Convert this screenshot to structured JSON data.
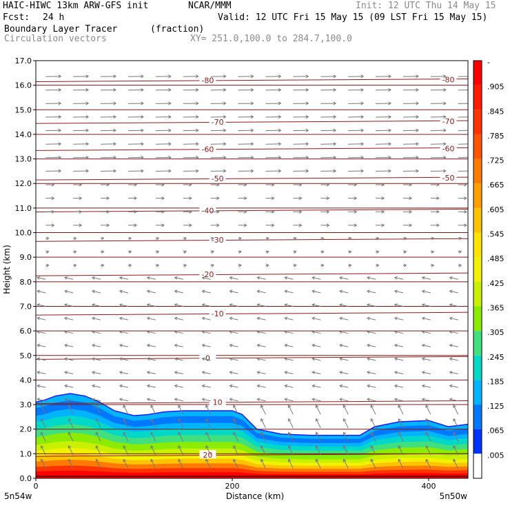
{
  "header": {
    "model_line": "HAIC-HIWC 13km ARW-GFS init",
    "org": "NCAR/MMM",
    "init": "Init: 12 UTC Thu 14 May 15",
    "fcst_label": "Fcst:",
    "fcst_value": "24 h",
    "valid": "Valid: 12 UTC Fri 15 May 15 (09 LST Fri 15 May 15)",
    "field_name": "Boundary Layer Tracer",
    "field_units": "(fraction)",
    "vector_label": "Circulation vectors",
    "xy_range": "XY= 251.0,100.0 to 284.7,100.0"
  },
  "chart_data": {
    "type": "cross-section",
    "title": "Boundary Layer Tracer",
    "units": "(fraction)",
    "xlabel": "Distance (km)",
    "ylabel": "Height (km)",
    "xlim": [
      0,
      440
    ],
    "ylim": [
      0,
      17
    ],
    "x_ticks": [
      0,
      200,
      400
    ],
    "y_ticks": [
      0.0,
      1.0,
      2.0,
      3.0,
      4.0,
      5.0,
      6.0,
      7.0,
      8.0,
      9.0,
      10.0,
      11.0,
      12.0,
      13.0,
      14.0,
      15.0,
      16.0,
      17.0
    ],
    "endpoint_left": "5n54w",
    "endpoint_right": "5n50w",
    "colorbar": {
      "labels": [
        "-",
        ".905",
        ".845",
        ".785",
        ".725",
        ".665",
        ".605",
        ".545",
        ".485",
        ".425",
        ".365",
        ".305",
        ".245",
        ".185",
        ".125",
        ".065",
        ".005"
      ],
      "colors": [
        "#ff0000",
        "#ff1a00",
        "#ff3300",
        "#ff5500",
        "#ff7a00",
        "#ffa000",
        "#ffc400",
        "#ffe400",
        "#f2f200",
        "#c8f000",
        "#8cec00",
        "#40e080",
        "#00d8c8",
        "#00b4ff",
        "#0078ff",
        "#0033ff",
        "#ffffff"
      ]
    },
    "tracer_profile": {
      "x": [
        0,
        10,
        20,
        35,
        50,
        65,
        80,
        100,
        115,
        130,
        150,
        175,
        200,
        210,
        225,
        250,
        280,
        310,
        330,
        345,
        370,
        400,
        420,
        440
      ],
      "top": [
        3.1,
        3.2,
        3.35,
        3.45,
        3.35,
        3.1,
        2.75,
        2.55,
        2.6,
        2.7,
        2.75,
        2.75,
        2.75,
        2.6,
        2.0,
        1.8,
        1.75,
        1.75,
        1.75,
        2.1,
        2.3,
        2.35,
        2.1,
        2.2
      ]
    },
    "temperature_contours": [
      {
        "label": "-80",
        "height": 16.2
      },
      {
        "label": "-70",
        "height": 14.5
      },
      {
        "label": "-60",
        "height": 13.4
      },
      {
        "label": "-50",
        "height": 12.2
      },
      {
        "label": "-40",
        "height": 10.9
      },
      {
        "label": "-30",
        "height": 9.7
      },
      {
        "label": "-20",
        "height": 8.3
      },
      {
        "label": "-10",
        "height": 6.7
      },
      {
        "label": "0",
        "height": 4.9
      },
      {
        "label": "10",
        "height": 3.1
      },
      {
        "label": "20",
        "height": 0.95
      }
    ]
  }
}
